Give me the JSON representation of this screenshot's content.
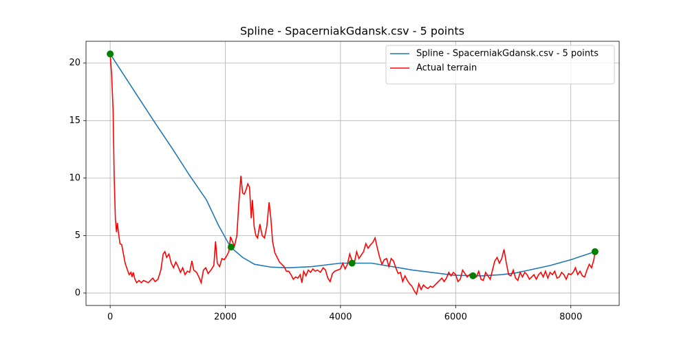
{
  "chart_data": {
    "type": "line",
    "title": "Spline - SpacerniakGdansk.csv - 5 points",
    "series": [
      {
        "name": "Spline - SpacerniakGdansk.csv - 5 points",
        "color": "#1f77b4",
        "x": [
          0,
          240,
          480,
          780,
          1075,
          1370,
          1672,
          1880,
          2090,
          2300,
          2507,
          2800,
          3104,
          3500,
          4000,
          4537,
          5254,
          5970,
          6448,
          6800,
          7045,
          7642,
          8000,
          8420
        ],
        "values": [
          20.8,
          18.95,
          17.1,
          14.8,
          12.6,
          10.3,
          8.1,
          5.9,
          4.0,
          3.1,
          2.5,
          2.25,
          2.2,
          2.3,
          2.6,
          2.6,
          2.0,
          1.55,
          1.5,
          1.6,
          1.75,
          2.4,
          2.9,
          3.6
        ]
      },
      {
        "name": "Actual terrain",
        "color": "#ff0000",
        "x": [
          0,
          25,
          50,
          70,
          90,
          110,
          125,
          145,
          170,
          200,
          230,
          260,
          300,
          330,
          360,
          380,
          400,
          430,
          460,
          500,
          540,
          580,
          620,
          660,
          700,
          740,
          780,
          830,
          880,
          920,
          950,
          980,
          1020,
          1060,
          1100,
          1140,
          1180,
          1220,
          1260,
          1300,
          1340,
          1380,
          1420,
          1450,
          1500,
          1540,
          1580,
          1620,
          1660,
          1700,
          1750,
          1800,
          1830,
          1860,
          1900,
          1940,
          1980,
          2020,
          2060,
          2090,
          2130,
          2160,
          2200,
          2230,
          2270,
          2300,
          2330,
          2360,
          2390,
          2420,
          2450,
          2470,
          2500,
          2530,
          2560,
          2600,
          2640,
          2680,
          2720,
          2760,
          2790,
          2820,
          2860,
          2900,
          2940,
          2980,
          3020,
          3060,
          3100,
          3140,
          3180,
          3220,
          3260,
          3300,
          3330,
          3360,
          3400,
          3440,
          3480,
          3520,
          3560,
          3600,
          3650,
          3700,
          3740,
          3780,
          3820,
          3860,
          3900,
          3950,
          4000,
          4040,
          4080,
          4120,
          4160,
          4200,
          4240,
          4280,
          4320,
          4360,
          4400,
          4440,
          4480,
          4520,
          4560,
          4600,
          4640,
          4680,
          4720,
          4760,
          4800,
          4840,
          4880,
          4920,
          4960,
          5000,
          5040,
          5080,
          5120,
          5160,
          5200,
          5240,
          5280,
          5320,
          5360,
          5400,
          5440,
          5480,
          5520,
          5560,
          5600,
          5640,
          5680,
          5720,
          5760,
          5800,
          5840,
          5880,
          5920,
          5960,
          6000,
          6040,
          6080,
          6120,
          6160,
          6200,
          6240,
          6280,
          6320,
          6360,
          6400,
          6440,
          6480,
          6520,
          6560,
          6600,
          6640,
          6680,
          6720,
          6760,
          6800,
          6840,
          6880,
          6920,
          6960,
          7000,
          7040,
          7080,
          7120,
          7160,
          7200,
          7240,
          7280,
          7320,
          7360,
          7400,
          7440,
          7480,
          7520,
          7560,
          7600,
          7640,
          7680,
          7720,
          7760,
          7800,
          7840,
          7880,
          7920,
          7960,
          8000,
          8040,
          8080,
          8120,
          8160,
          8200,
          8240,
          8280,
          8320,
          8360,
          8400,
          8420
        ],
        "values": [
          20.8,
          19,
          16,
          10,
          6.5,
          5.3,
          6.1,
          5.2,
          4.3,
          4.2,
          3.4,
          2.6,
          2.0,
          1.6,
          1.8,
          1.4,
          1.8,
          1.2,
          0.9,
          1.1,
          0.9,
          1.1,
          1.0,
          0.9,
          1.1,
          1.3,
          1.0,
          1.2,
          2.0,
          3.4,
          3.6,
          3.1,
          3.4,
          2.6,
          2.2,
          2.7,
          2.3,
          1.8,
          2.2,
          1.6,
          1.9,
          1.8,
          2.8,
          2.0,
          1.8,
          1.4,
          0.9,
          2.0,
          2.2,
          1.7,
          2.0,
          2.4,
          4.5,
          2.6,
          2.3,
          3.0,
          2.9,
          3.2,
          3.6,
          4.9,
          4.4,
          4.1,
          5.0,
          7.5,
          10.2,
          8.7,
          8.6,
          9.0,
          9.5,
          9.2,
          6.5,
          8.1,
          5.8,
          5.0,
          4.8,
          6.0,
          5.0,
          4.8,
          5.8,
          7.9,
          6.5,
          4.5,
          3.5,
          3.1,
          2.7,
          2.5,
          2.3,
          1.9,
          1.9,
          1.6,
          1.2,
          1.4,
          1.3,
          1.6,
          0.9,
          1.9,
          1.5,
          2.0,
          1.8,
          2.1,
          1.9,
          2.0,
          1.8,
          2.2,
          2.0,
          1.3,
          1.0,
          1.7,
          1.9,
          2.0,
          2.1,
          2.6,
          2.1,
          2.5,
          3.4,
          2.8,
          2.6,
          3.6,
          3.0,
          3.3,
          3.6,
          4.3,
          3.9,
          4.2,
          4.4,
          4.8,
          3.9,
          3.1,
          2.5,
          2.9,
          3.0,
          2.3,
          3.0,
          2.8,
          2.2,
          1.7,
          1.8,
          1.0,
          1.5,
          1.1,
          0.8,
          0.6,
          0.2,
          -0.1,
          0.8,
          0.3,
          0.7,
          0.5,
          0.4,
          0.6,
          0.5,
          0.7,
          0.9,
          1.1,
          1.3,
          1.0,
          1.3,
          1.8,
          1.5,
          1.8,
          1.6,
          1.0,
          1.2,
          2.0,
          1.7,
          1.4,
          1.6,
          1.7,
          1.5,
          1.4,
          1.9,
          1.2,
          1.1,
          1.8,
          1.5,
          1.2,
          2.0,
          2.8,
          3.1,
          2.6,
          3.0,
          3.8,
          2.6,
          1.6,
          1.5,
          2.0,
          1.3,
          1.1,
          1.8,
          1.4,
          1.8,
          1.6,
          1.2,
          1.4,
          1.6,
          1.2,
          1.6,
          1.8,
          1.4,
          1.9,
          1.3,
          1.8,
          1.6,
          1.9,
          1.3,
          1.4,
          1.8,
          1.6,
          1.2,
          1.7,
          1.6,
          1.8,
          2.2,
          1.6,
          1.9,
          1.5,
          1.4,
          2.0,
          2.5,
          2.2,
          2.9,
          3.6
        ]
      }
    ],
    "control_points": {
      "color": "#008000",
      "x": [
        0,
        2100,
        4200,
        6300,
        8420
      ],
      "values": [
        20.8,
        4.0,
        2.6,
        1.5,
        3.6
      ]
    },
    "xlim": [
      -420,
      8840
    ],
    "ylim": [
      -1.08,
      21.9
    ],
    "xticks": [
      0,
      2000,
      4000,
      6000,
      8000
    ],
    "yticks": [
      0,
      5,
      10,
      15,
      20
    ],
    "grid": true,
    "legend": "upper right"
  }
}
